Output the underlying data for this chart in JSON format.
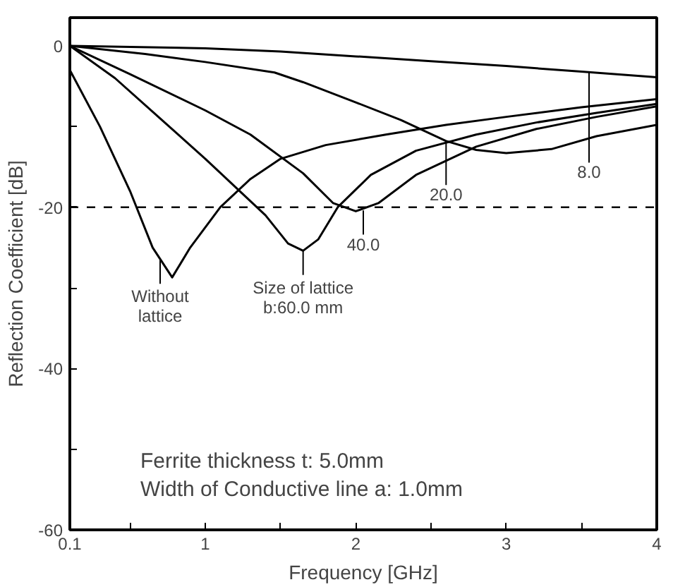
{
  "chart_data": {
    "type": "line",
    "xlabel": "Frequency [GHz]",
    "ylabel": "Reflection Coefficient [dB]",
    "xlim": [
      0.1,
      4
    ],
    "ylim": [
      -60,
      3.5
    ],
    "xticks": [
      0.1,
      {
        "value": 0.5,
        "label": null
      },
      1,
      {
        "value": 1.5,
        "label": null
      },
      2,
      {
        "value": 2.5,
        "label": null
      },
      3,
      {
        "value": 3.5,
        "label": null
      },
      4
    ],
    "yticks": [
      -60,
      {
        "value": -50,
        "label": null
      },
      -40,
      {
        "value": -30,
        "label": null
      },
      -20,
      {
        "value": -10,
        "label": null
      },
      0
    ],
    "grid": false,
    "marker": "none",
    "line_style": "solid",
    "series": [
      {
        "color": "#000000",
        "x": [
          0.1,
          0.3,
          0.5,
          0.65,
          0.78,
          0.9,
          1.1,
          1.3,
          1.5,
          1.8,
          2.2,
          2.6,
          3.0,
          3.5,
          4.0
        ],
        "values": [
          -3,
          -10,
          -18,
          -25,
          -28.7,
          -25,
          -20,
          -16.5,
          -14,
          -12.3,
          -11,
          -9.8,
          -8.8,
          -7.6,
          -6.6
        ]
      },
      {
        "color": "#000000",
        "x": [
          0.1,
          0.4,
          0.7,
          1.0,
          1.2,
          1.4,
          1.55,
          1.65,
          1.75,
          1.88,
          2.1,
          2.4,
          2.8,
          3.2,
          3.6,
          4.0
        ],
        "values": [
          0,
          -4,
          -9,
          -14,
          -17.5,
          -21,
          -24.5,
          -25.4,
          -24,
          -20,
          -16,
          -13,
          -11,
          -9.5,
          -8.3,
          -7.2
        ]
      },
      {
        "color": "#000000",
        "x": [
          0.1,
          0.5,
          1.0,
          1.3,
          1.65,
          1.85,
          2.0,
          2.15,
          2.4,
          2.8,
          3.2,
          3.6,
          4.0
        ],
        "values": [
          0,
          -3.5,
          -8,
          -11,
          -15.8,
          -19.5,
          -20.5,
          -19.5,
          -16,
          -12.5,
          -10.3,
          -8.8,
          -7.5
        ]
      },
      {
        "color": "#000000",
        "x": [
          0.1,
          0.6,
          1.0,
          1.46,
          1.65,
          2.0,
          2.3,
          2.6,
          2.8,
          3.0,
          3.3,
          3.6,
          4.0
        ],
        "values": [
          0,
          -1,
          -2,
          -3.3,
          -4.5,
          -7,
          -9.2,
          -11.8,
          -12.9,
          -13.3,
          -12.8,
          -11.2,
          -9.8
        ]
      },
      {
        "color": "#000000",
        "x": [
          0.1,
          1.0,
          1.5,
          2.0,
          2.5,
          3.0,
          3.5,
          4.0
        ],
        "values": [
          0,
          -0.3,
          -0.7,
          -1.3,
          -1.9,
          -2.5,
          -3.2,
          -3.9
        ]
      }
    ],
    "ref_lines": [
      {
        "axis": "y",
        "value": -20,
        "line_style": "dashed",
        "color": "#000000"
      }
    ],
    "annotations": [
      {
        "text": "Without\nlattice",
        "x": 0.7,
        "y": -26.5
      },
      {
        "text": "Size of lattice\nb:60.0 mm",
        "x": 1.65,
        "y": -25.4
      },
      {
        "text": "40.0",
        "x": 2.05,
        "y": -20.4
      },
      {
        "text": "20.0",
        "x": 2.6,
        "y": -11.8
      },
      {
        "text": "8.0",
        "x": 3.55,
        "y": -3.2
      },
      "Ferrite thickness t: 5.0mm\nWidth of Conductive line a: 1.0mm"
    ]
  }
}
